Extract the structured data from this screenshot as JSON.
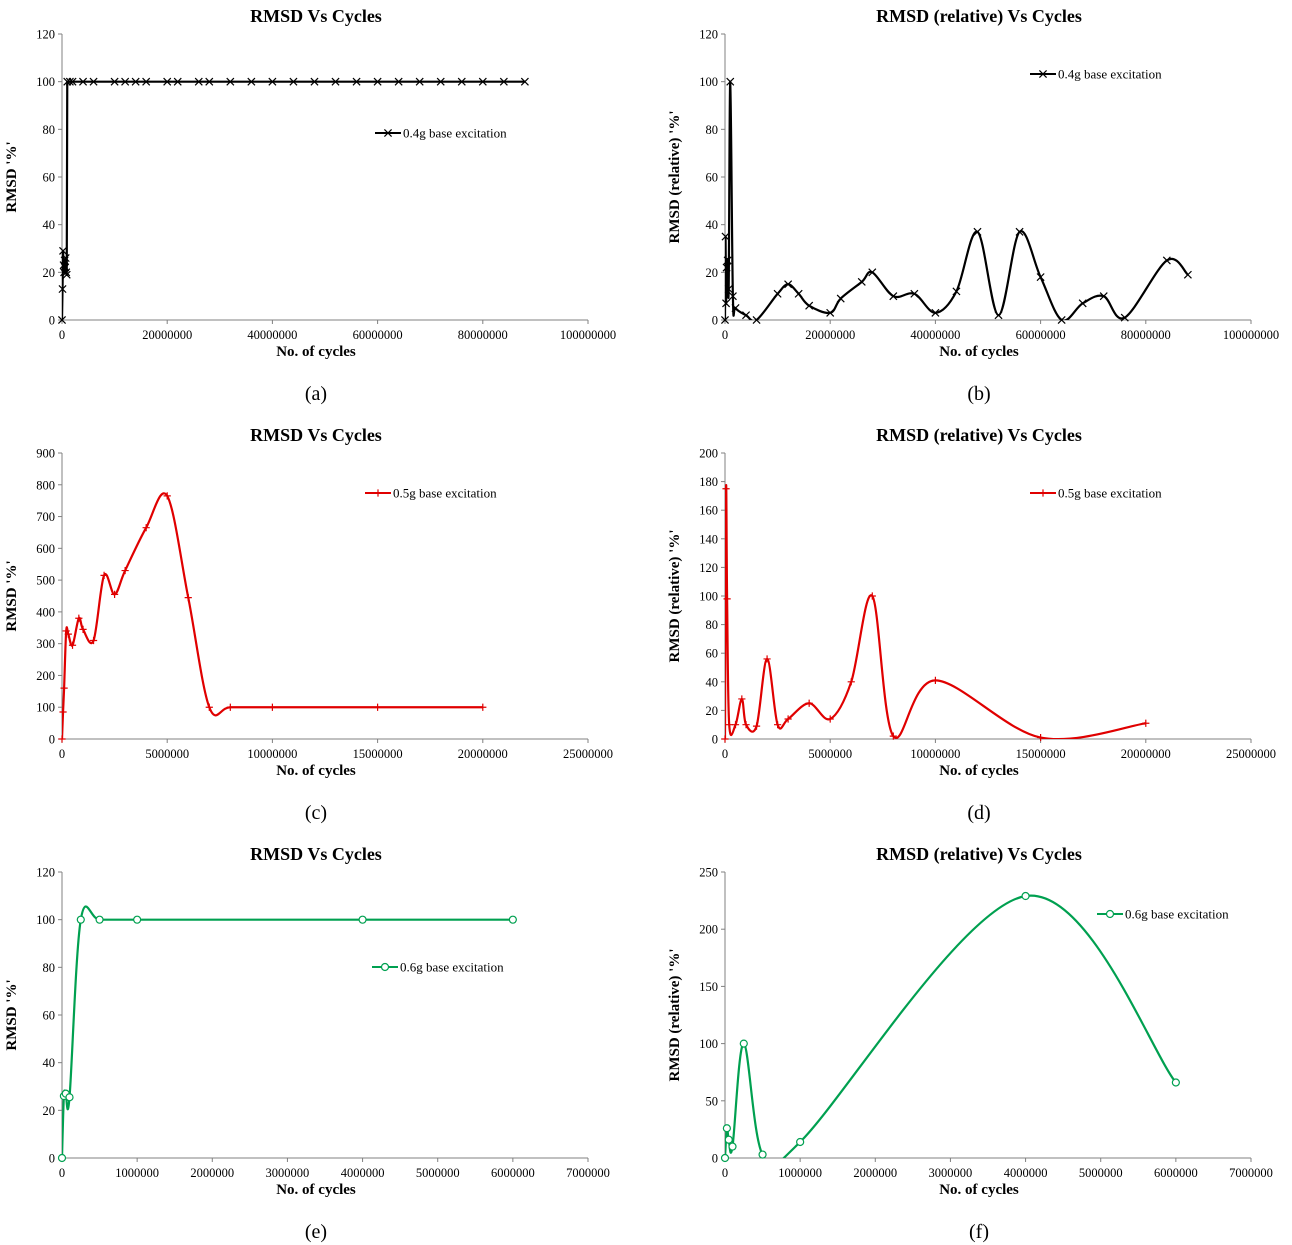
{
  "chart_data": [
    {
      "panel": "(a)",
      "type": "line",
      "title": "RMSD Vs Cycles",
      "xlabel": "No. of cycles",
      "ylabel": "RMSD '%'",
      "xlim": [
        0,
        100000000
      ],
      "xticks": [
        0,
        20000000,
        40000000,
        60000000,
        80000000,
        100000000
      ],
      "ylim": [
        0,
        120
      ],
      "yticks": [
        0,
        20,
        40,
        60,
        80,
        100,
        120
      ],
      "marker": "x",
      "color": "#000000",
      "smooth": false,
      "legend_position": "right",
      "series": [
        {
          "name": "0.4g base excitation",
          "x": [
            0,
            100000,
            200000,
            300000,
            400000,
            500000,
            600000,
            700000,
            800000,
            900000,
            1000000,
            1500000,
            2000000,
            4000000,
            6000000,
            10000000,
            12000000,
            14000000,
            16000000,
            20000000,
            22000000,
            26000000,
            28000000,
            32000000,
            36000000,
            40000000,
            44000000,
            48000000,
            52000000,
            56000000,
            60000000,
            64000000,
            68000000,
            72000000,
            76000000,
            80000000,
            84000000,
            88000000
          ],
          "y": [
            0,
            13,
            29,
            23,
            20,
            25,
            22,
            26,
            20,
            19,
            100,
            100,
            100,
            100,
            100,
            100,
            100,
            100,
            100,
            100,
            100,
            100,
            100,
            100,
            100,
            100,
            100,
            100,
            100,
            100,
            100,
            100,
            100,
            100,
            100,
            100,
            100,
            100
          ]
        }
      ]
    },
    {
      "panel": "(b)",
      "type": "line",
      "title": "RMSD (relative) Vs Cycles",
      "xlabel": "No. of cycles",
      "ylabel": "RMSD (relative) '%'",
      "xlim": [
        0,
        100000000
      ],
      "xticks": [
        0,
        20000000,
        40000000,
        60000000,
        80000000,
        100000000
      ],
      "ylim": [
        0,
        120
      ],
      "yticks": [
        0,
        20,
        40,
        60,
        80,
        100,
        120
      ],
      "marker": "x",
      "color": "#000000",
      "smooth": true,
      "legend_position": "top-right",
      "series": [
        {
          "name": "0.4g base excitation",
          "x": [
            0,
            100000,
            200000,
            300000,
            500000,
            700000,
            1000000,
            1500000,
            2000000,
            4000000,
            6000000,
            10000000,
            12000000,
            14000000,
            16000000,
            20000000,
            22000000,
            26000000,
            28000000,
            32000000,
            36000000,
            40000000,
            44000000,
            48000000,
            52000000,
            56000000,
            60000000,
            64000000,
            68000000,
            72000000,
            76000000,
            84000000,
            88000000
          ],
          "y": [
            0,
            35,
            7,
            22,
            25,
            13,
            100,
            10,
            5,
            2,
            0,
            11,
            15,
            11,
            6,
            3,
            9,
            16,
            20,
            10,
            11,
            3,
            12,
            37,
            2,
            37,
            18,
            0,
            7,
            10,
            1,
            25,
            19
          ]
        }
      ]
    },
    {
      "panel": "(c)",
      "type": "line",
      "title": "RMSD Vs Cycles",
      "xlabel": "No. of cycles",
      "ylabel": "RMSD '%'",
      "xlim": [
        0,
        25000000
      ],
      "xticks": [
        0,
        5000000,
        10000000,
        15000000,
        20000000,
        25000000
      ],
      "ylim": [
        0,
        900
      ],
      "yticks": [
        0,
        100,
        200,
        300,
        400,
        500,
        600,
        700,
        800,
        900
      ],
      "marker": "+",
      "color": "#e00000",
      "smooth": true,
      "legend_position": "top-right",
      "series": [
        {
          "name": "0.5g base excitation",
          "x": [
            0,
            50000,
            100000,
            200000,
            300000,
            500000,
            800000,
            1000000,
            1500000,
            2000000,
            2500000,
            3000000,
            4000000,
            5000000,
            6000000,
            7000000,
            8000000,
            10000000,
            15000000,
            20000000
          ],
          "y": [
            0,
            85,
            160,
            340,
            330,
            295,
            380,
            345,
            310,
            515,
            455,
            530,
            665,
            765,
            445,
            100,
            100,
            100,
            100,
            100
          ]
        }
      ]
    },
    {
      "panel": "(d)",
      "type": "line",
      "title": "RMSD (relative) Vs Cycles",
      "xlabel": "No. of cycles",
      "ylabel": "RMSD (relative) '%'",
      "xlim": [
        0,
        25000000
      ],
      "xticks": [
        0,
        5000000,
        10000000,
        15000000,
        20000000,
        25000000
      ],
      "ylim": [
        0,
        200
      ],
      "yticks": [
        0,
        20,
        40,
        60,
        80,
        100,
        120,
        140,
        160,
        180,
        200
      ],
      "marker": "+",
      "color": "#e00000",
      "smooth": true,
      "legend_position": "top-right",
      "series": [
        {
          "name": "0.5g base excitation",
          "x": [
            0,
            50000,
            100000,
            200000,
            500000,
            800000,
            1000000,
            1500000,
            2000000,
            2500000,
            3000000,
            4000000,
            5000000,
            6000000,
            7000000,
            8000000,
            10000000,
            15000000,
            20000000
          ],
          "y": [
            0,
            175,
            98,
            10,
            10,
            28,
            10,
            9,
            56,
            10,
            14,
            25,
            14,
            40,
            100,
            2,
            41,
            1,
            11
          ]
        }
      ]
    },
    {
      "panel": "(e)",
      "type": "line",
      "title": "RMSD Vs Cycles",
      "xlabel": "No. of cycles",
      "ylabel": "RMSD '%'",
      "xlim": [
        0,
        7000000
      ],
      "xticks": [
        0,
        1000000,
        2000000,
        3000000,
        4000000,
        5000000,
        6000000,
        7000000
      ],
      "ylim": [
        0,
        120
      ],
      "yticks": [
        0,
        20,
        40,
        60,
        80,
        100,
        120
      ],
      "marker": "o",
      "color": "#00a050",
      "smooth": true,
      "legend_position": "right",
      "series": [
        {
          "name": "0.6g base excitation",
          "x": [
            0,
            25000,
            50000,
            100000,
            250000,
            500000,
            1000000,
            4000000,
            6000000
          ],
          "y": [
            0,
            26,
            27,
            25.5,
            100,
            100,
            100,
            100,
            100
          ]
        }
      ]
    },
    {
      "panel": "(f)",
      "type": "line",
      "title": "RMSD (relative) Vs Cycles",
      "xlabel": "No. of cycles",
      "ylabel": "RMSD (relative) '%'",
      "xlim": [
        0,
        7000000
      ],
      "xticks": [
        0,
        1000000,
        2000000,
        3000000,
        4000000,
        5000000,
        6000000,
        7000000
      ],
      "ylim": [
        0,
        250
      ],
      "yticks": [
        0,
        50,
        100,
        150,
        200,
        250
      ],
      "marker": "o",
      "color": "#00a050",
      "smooth": true,
      "legend_position": "top-right",
      "series": [
        {
          "name": "0.6g base excitation",
          "x": [
            0,
            25000,
            50000,
            100000,
            250000,
            500000,
            1000000,
            4000000,
            6000000
          ],
          "y": [
            0,
            26,
            16,
            10,
            100,
            3,
            14,
            229,
            66
          ]
        }
      ]
    }
  ]
}
